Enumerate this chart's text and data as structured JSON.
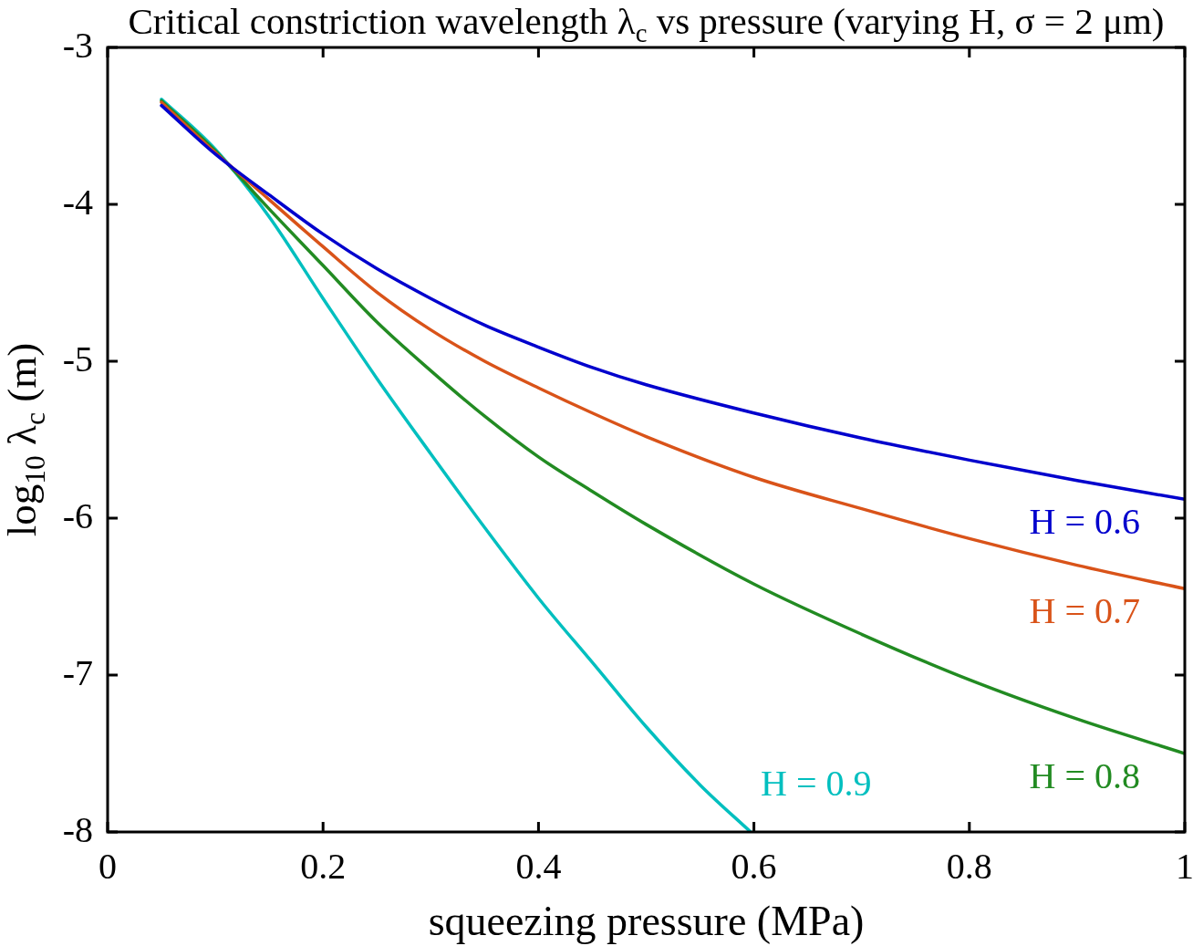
{
  "chart_data": {
    "type": "line",
    "title": "Critical constriction wavelength λ$_{c}$ vs pressure (varying H, σ = 2 μm)",
    "xlabel": "squeezing pressure (MPa)",
    "ylabel": "log$_{10}$ λ$_{c}$ (m)",
    "xlim": [
      0,
      1
    ],
    "ylim": [
      -8,
      -3
    ],
    "xticks": [
      0,
      0.2,
      0.4,
      0.6,
      0.8,
      1
    ],
    "yticks": [
      -3,
      -4,
      -5,
      -6,
      -7,
      -8
    ],
    "grid": false,
    "legend": false,
    "marker": "none",
    "line_style": "solid",
    "series": [
      {
        "name": "H = 0.6",
        "color": "#0000cd",
        "x": [
          0.05,
          0.1,
          0.15,
          0.2,
          0.25,
          0.3,
          0.35,
          0.4,
          0.45,
          0.5,
          0.6,
          0.7,
          0.8,
          0.9,
          1.0
        ],
        "values": [
          -3.37,
          -3.68,
          -3.94,
          -4.19,
          -4.41,
          -4.6,
          -4.77,
          -4.91,
          -5.04,
          -5.15,
          -5.33,
          -5.49,
          -5.63,
          -5.76,
          -5.88
        ]
      },
      {
        "name": "H = 0.7",
        "color": "#d95319",
        "x": [
          0.05,
          0.1,
          0.15,
          0.2,
          0.25,
          0.3,
          0.35,
          0.4,
          0.45,
          0.5,
          0.6,
          0.7,
          0.8,
          0.9,
          1.0
        ],
        "values": [
          -3.35,
          -3.67,
          -3.97,
          -4.27,
          -4.56,
          -4.8,
          -5.0,
          -5.17,
          -5.33,
          -5.48,
          -5.74,
          -5.94,
          -6.13,
          -6.3,
          -6.45
        ]
      },
      {
        "name": "H = 0.8",
        "color": "#228b22",
        "x": [
          0.05,
          0.1,
          0.15,
          0.2,
          0.25,
          0.3,
          0.35,
          0.4,
          0.45,
          0.5,
          0.6,
          0.7,
          0.8,
          0.9,
          1.0
        ],
        "values": [
          -3.34,
          -3.66,
          -4.03,
          -4.39,
          -4.75,
          -5.06,
          -5.35,
          -5.61,
          -5.83,
          -6.04,
          -6.42,
          -6.74,
          -7.03,
          -7.28,
          -7.5
        ]
      },
      {
        "name": "H = 0.9",
        "color": "#00bfbf",
        "x": [
          0.05,
          0.1,
          0.15,
          0.2,
          0.25,
          0.3,
          0.35,
          0.4,
          0.45,
          0.5,
          0.55,
          0.597
        ],
        "values": [
          -3.33,
          -3.65,
          -4.08,
          -4.6,
          -5.11,
          -5.59,
          -6.06,
          -6.51,
          -6.92,
          -7.33,
          -7.7,
          -8.0
        ]
      }
    ]
  }
}
